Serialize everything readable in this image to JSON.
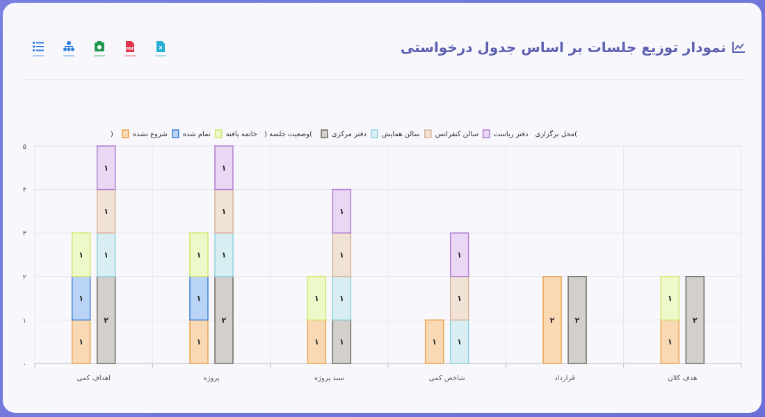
{
  "title": "نمودار توزیع جلسات بر اساس جدول درخواستی",
  "toolbar": [
    {
      "name": "list-icon",
      "color": "#2f7de1"
    },
    {
      "name": "org-chart-icon",
      "color": "#2f7de1"
    },
    {
      "name": "image-icon",
      "color": "#1f9a4f"
    },
    {
      "name": "pdf-icon",
      "color": "#e0344a"
    },
    {
      "name": "excel-icon",
      "color": "#27b0d6"
    }
  ],
  "chart_data": {
    "type": "bar",
    "stacked": true,
    "groups": [
      {
        "label": "محل برگزاری(",
        "series": [
          {
            "name": "دفتر ریاست",
            "fill": "#e9d7f3",
            "stroke": "#b07ad0",
            "values": [
              1,
              1,
              1,
              1,
              0,
              0
            ]
          },
          {
            "name": "سالن کنفرانس",
            "fill": "#f1e2d6",
            "stroke": "#d8b398",
            "values": [
              1,
              1,
              1,
              1,
              0,
              0
            ]
          },
          {
            "name": "سالن همایش",
            "fill": "#d8eef2",
            "stroke": "#8fd2df",
            "values": [
              1,
              1,
              1,
              1,
              0,
              0
            ]
          },
          {
            "name": "دفتر مرکزی",
            "fill": "#d3d0cc",
            "stroke": "#6e6a62",
            "values": [
              2,
              2,
              1,
              0,
              2,
              2
            ]
          }
        ]
      },
      {
        "label": ") وضعیت جلسه(",
        "series": [
          {
            "name": "خاتمه یافته",
            "fill": "#eef9c9",
            "stroke": "#cfe86a",
            "values": [
              1,
              1,
              1,
              0,
              0,
              1
            ]
          },
          {
            "name": "تمام شده",
            "fill": "#b9d4f7",
            "stroke": "#3f7fd6",
            "values": [
              1,
              1,
              0,
              0,
              0,
              0
            ]
          },
          {
            "name": "شروع نشده",
            "fill": "#f8d9b4",
            "stroke": "#eba24d",
            "values": [
              1,
              1,
              1,
              1,
              2,
              1
            ]
          }
        ]
      }
    ],
    "legend_close": ")",
    "categories": [
      "اهداف کمی",
      "پروژه",
      "سبد پروژه",
      "شاخص کمی",
      "قرارداد",
      "هدف کلان"
    ],
    "y_ticks": [
      "۰",
      "۱",
      "۲",
      "۳",
      "۴",
      "۵"
    ],
    "ylim": [
      0,
      5
    ],
    "digits": [
      "۰",
      "۱",
      "۲",
      "۳",
      "۴",
      "۵",
      "۶",
      "۷",
      "۸",
      "۹"
    ],
    "grid": true,
    "legend_position": "top-center"
  }
}
